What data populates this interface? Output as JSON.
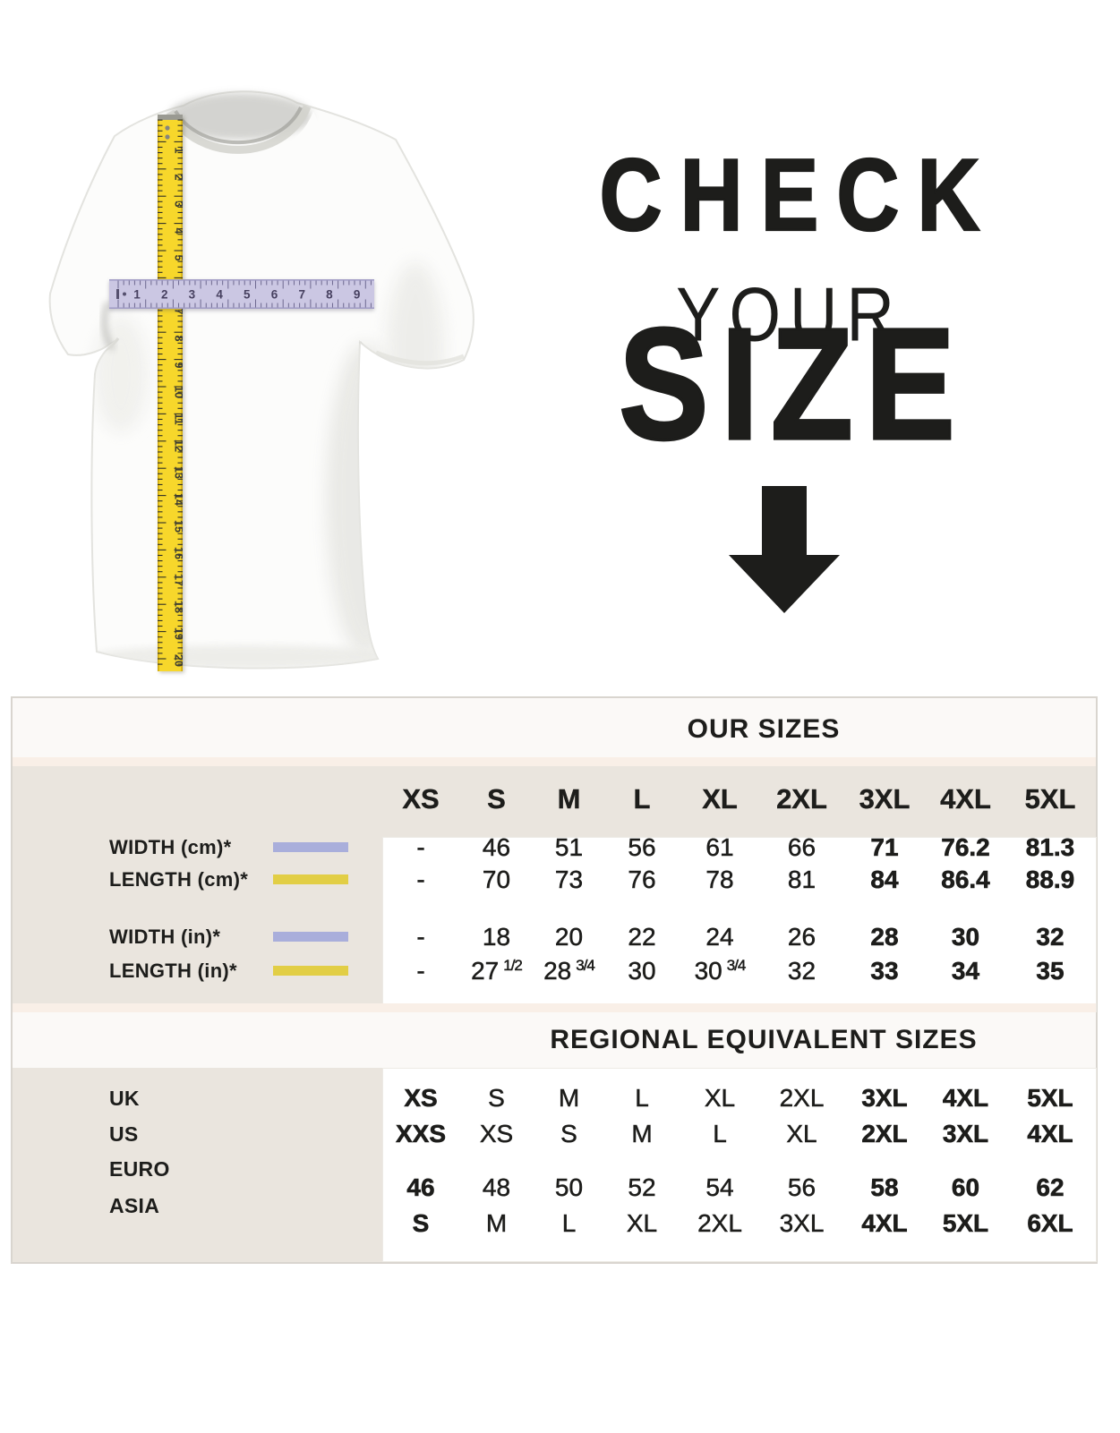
{
  "hero": {
    "line1": "CHECK",
    "line2": "YOUR",
    "line3": "SIZE",
    "arrow_icon": "down-arrow"
  },
  "shirt": {
    "vertical_tape_numbers": [
      "1",
      "2",
      "3",
      "4",
      "5",
      "6",
      "7",
      "8",
      "9",
      "10",
      "11",
      "12",
      "13",
      "14",
      "15",
      "16",
      "17",
      "18",
      "19",
      "20"
    ],
    "horizontal_tape_numbers": [
      "1",
      "2",
      "3",
      "4",
      "5",
      "6",
      "7",
      "8",
      "9"
    ],
    "vertical_tape_color": "#F7D72B",
    "horizontal_tape_color": "#CBC7E3"
  },
  "size_chart": {
    "our_sizes_title": "OUR SIZES",
    "regional_title": "REGIONAL EQUIVALENT SIZES",
    "columns": [
      "XS",
      "S",
      "M",
      "L",
      "XL",
      "2XL",
      "3XL",
      "4XL",
      "5XL"
    ],
    "measurement_rows": [
      {
        "label": "WIDTH (cm)*",
        "swatch_color": "#A9AEDB",
        "values": [
          "-",
          "46",
          "51",
          "56",
          "61",
          "66",
          "71",
          "76.2",
          "81.3"
        ],
        "bold_indices": [
          6,
          7,
          8
        ]
      },
      {
        "label": "LENGTH (cm)*",
        "swatch_color": "#E2CE45",
        "values": [
          "-",
          "70",
          "73",
          "76",
          "78",
          "81",
          "84",
          "86.4",
          "88.9"
        ],
        "bold_indices": [
          6,
          7,
          8
        ]
      },
      {
        "label": "WIDTH (in)*",
        "swatch_color": "#A9AEDB",
        "values": [
          "-",
          "18",
          "20",
          "22",
          "24",
          "26",
          "28",
          "30",
          "32"
        ],
        "bold_indices": [
          6,
          7,
          8
        ]
      },
      {
        "label": "LENGTH (in)*",
        "swatch_color": "#E2CE45",
        "values": [
          "-",
          {
            "v": "27",
            "f": "1/2"
          },
          {
            "v": "28",
            "f": "3/4"
          },
          "30",
          {
            "v": "30",
            "f": "3/4"
          },
          "32",
          "33",
          "34",
          "35"
        ],
        "bold_indices": [
          6,
          7,
          8
        ]
      }
    ],
    "regional_rows": [
      {
        "label": "UK",
        "values": [
          "XS",
          "S",
          "M",
          "L",
          "XL",
          "2XL",
          "3XL",
          "4XL",
          "5XL"
        ],
        "bold_indices": [
          0,
          6,
          7,
          8
        ]
      },
      {
        "label": "US",
        "values": [
          "XXS",
          "XS",
          "S",
          "M",
          "L",
          "XL",
          "2XL",
          "3XL",
          "4XL"
        ],
        "bold_indices": [
          0,
          6,
          7,
          8
        ]
      },
      {
        "label": "EURO",
        "values": [
          "46",
          "48",
          "50",
          "52",
          "54",
          "56",
          "58",
          "60",
          "62"
        ],
        "bold_indices": [
          0,
          6,
          7,
          8
        ]
      },
      {
        "label": "ASIA",
        "values": [
          "S",
          "M",
          "L",
          "XL",
          "2XL",
          "3XL",
          "4XL",
          "5XL",
          "6XL"
        ],
        "bold_indices": [
          0,
          6,
          7,
          8
        ]
      }
    ]
  },
  "colors": {
    "text": "#1D1D1B",
    "table_background": "#EAE5DE",
    "band_background": "#FBF9F7",
    "stripe_background": "#F9EFE7",
    "panel_background": "#FFFFFF",
    "width_accent": "#A9AEDB",
    "length_accent": "#E2CE45"
  }
}
